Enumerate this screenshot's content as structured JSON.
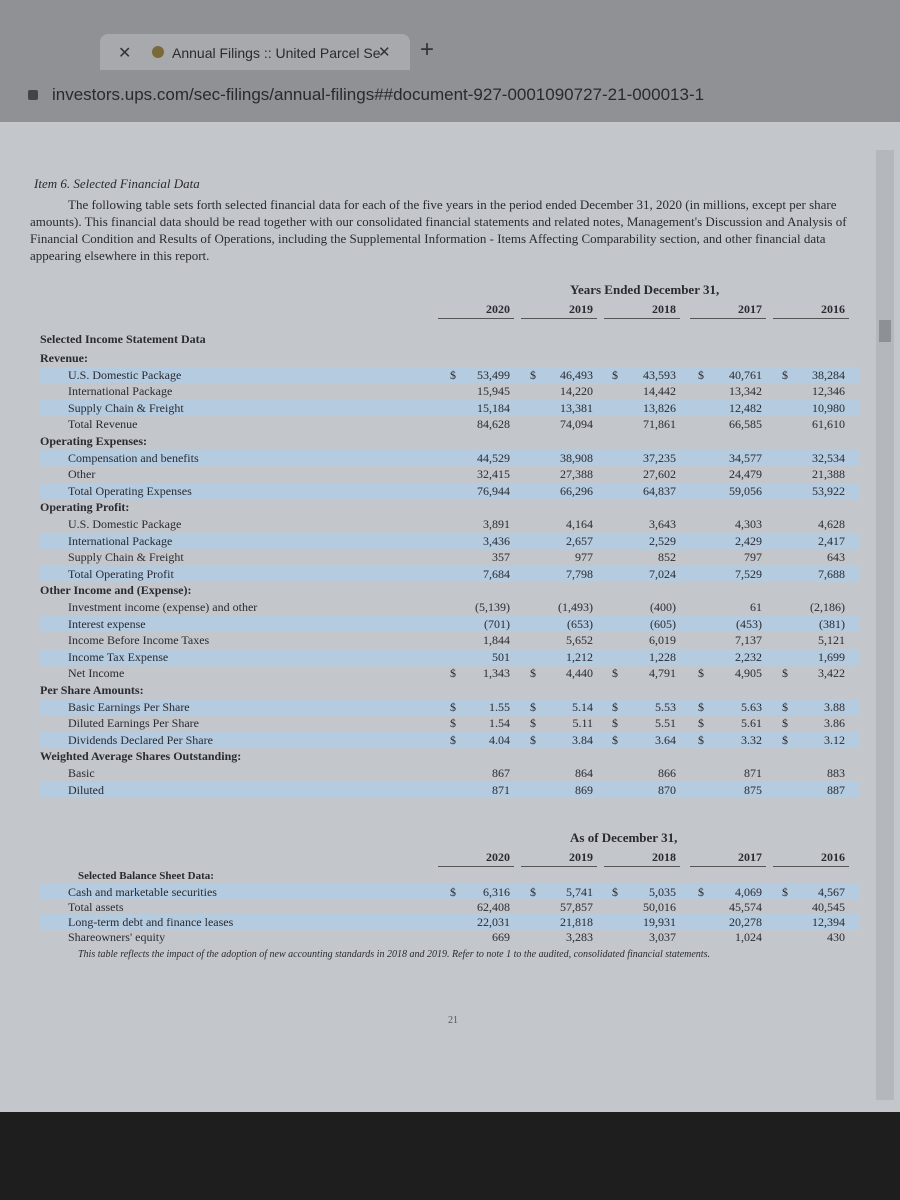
{
  "browser": {
    "tab_title": "Annual Filings :: United Parcel Se",
    "url": "investors.ups.com/sec-filings/annual-filings##document-927-0001090727-21-000013-1"
  },
  "document": {
    "heading": "Item 6. Selected Financial Data",
    "intro": "The following table sets forth selected financial data for each of the five years in the period ended December 31, 2020 (in millions, except per share amounts). This financial data should be read together with our consolidated financial statements and related notes, Management's Discussion and Analysis of Financial Condition and Results of Operations, including the Supplemental Information - Items Affecting Comparability section, and other financial data appearing elsewhere in this report.",
    "period_header": "Years Ended December 31,",
    "years": [
      "2020",
      "2019",
      "2018",
      "2017",
      "2016"
    ],
    "currency_symbol": "$",
    "income_statement": {
      "title": "Selected Income Statement Data",
      "rows": [
        {
          "label": "Revenue:"
        },
        {
          "label": "U.S. Domestic Package",
          "values": [
            "53,499",
            "46,493",
            "43,593",
            "40,761",
            "38,284"
          ],
          "dollar": true
        },
        {
          "label": "International Package",
          "values": [
            "15,945",
            "14,220",
            "14,442",
            "13,342",
            "12,346"
          ]
        },
        {
          "label": "Supply Chain & Freight",
          "values": [
            "15,184",
            "13,381",
            "13,826",
            "12,482",
            "10,980"
          ]
        },
        {
          "label": "Total Revenue",
          "values": [
            "84,628",
            "74,094",
            "71,861",
            "66,585",
            "61,610"
          ]
        },
        {
          "label": "Operating Expenses:"
        },
        {
          "label": "Compensation and benefits",
          "values": [
            "44,529",
            "38,908",
            "37,235",
            "34,577",
            "32,534"
          ]
        },
        {
          "label": "Other",
          "values": [
            "32,415",
            "27,388",
            "27,602",
            "24,479",
            "21,388"
          ]
        },
        {
          "label": "Total Operating Expenses",
          "values": [
            "76,944",
            "66,296",
            "64,837",
            "59,056",
            "53,922"
          ]
        },
        {
          "label": "Operating Profit:"
        },
        {
          "label": "U.S. Domestic Package",
          "values": [
            "3,891",
            "4,164",
            "3,643",
            "4,303",
            "4,628"
          ]
        },
        {
          "label": "International Package",
          "values": [
            "3,436",
            "2,657",
            "2,529",
            "2,429",
            "2,417"
          ]
        },
        {
          "label": "Supply Chain & Freight",
          "values": [
            "357",
            "977",
            "852",
            "797",
            "643"
          ]
        },
        {
          "label": "Total Operating Profit",
          "values": [
            "7,684",
            "7,798",
            "7,024",
            "7,529",
            "7,688"
          ]
        },
        {
          "label": "Other Income and (Expense):"
        },
        {
          "label": "Investment income (expense) and other",
          "values": [
            "(5,139)",
            "(1,493)",
            "(400)",
            "61",
            "(2,186)"
          ]
        },
        {
          "label": "Interest expense",
          "values": [
            "(701)",
            "(653)",
            "(605)",
            "(453)",
            "(381)"
          ]
        },
        {
          "label": "Income Before Income Taxes",
          "values": [
            "1,844",
            "5,652",
            "6,019",
            "7,137",
            "5,121"
          ]
        },
        {
          "label": "Income Tax Expense",
          "values": [
            "501",
            "1,212",
            "1,228",
            "2,232",
            "1,699"
          ]
        },
        {
          "label": "Net Income",
          "values": [
            "1,343",
            "4,440",
            "4,791",
            "4,905",
            "3,422"
          ],
          "dollar": true
        },
        {
          "label": "Per Share Amounts:"
        },
        {
          "label": "Basic Earnings Per Share",
          "values": [
            "1.55",
            "5.14",
            "5.53",
            "5.63",
            "3.88"
          ],
          "dollar": true
        },
        {
          "label": "Diluted Earnings Per Share",
          "values": [
            "1.54",
            "5.11",
            "5.51",
            "5.61",
            "3.86"
          ],
          "dollar": true
        },
        {
          "label": "Dividends Declared Per Share",
          "values": [
            "4.04",
            "3.84",
            "3.64",
            "3.32",
            "3.12"
          ],
          "dollar": true
        },
        {
          "label": "Weighted Average Shares Outstanding:"
        },
        {
          "label": "Basic",
          "values": [
            "867",
            "864",
            "866",
            "871",
            "883"
          ]
        },
        {
          "label": "Diluted",
          "values": [
            "871",
            "869",
            "870",
            "875",
            "887"
          ]
        }
      ]
    },
    "balance_header": "As of December 31,",
    "balance_sheet": {
      "title": "Selected Balance Sheet Data:",
      "rows": [
        {
          "label": "Cash and marketable securities",
          "values": [
            "6,316",
            "5,741",
            "5,035",
            "4,069",
            "4,567"
          ],
          "dollar": true
        },
        {
          "label": "Total assets",
          "values": [
            "62,408",
            "57,857",
            "50,016",
            "45,574",
            "40,545"
          ]
        },
        {
          "label": "Long-term debt and finance leases",
          "values": [
            "22,031",
            "21,818",
            "19,931",
            "20,278",
            "12,394"
          ]
        },
        {
          "label": "Shareowners' equity",
          "values": [
            "669",
            "3,283",
            "3,037",
            "1,024",
            "430"
          ]
        }
      ]
    },
    "footnote": "This table reflects the impact of the adoption of new accounting standards in 2018 and 2019. Refer to note 1 to the audited, consolidated financial statements.",
    "page_number": "21"
  }
}
